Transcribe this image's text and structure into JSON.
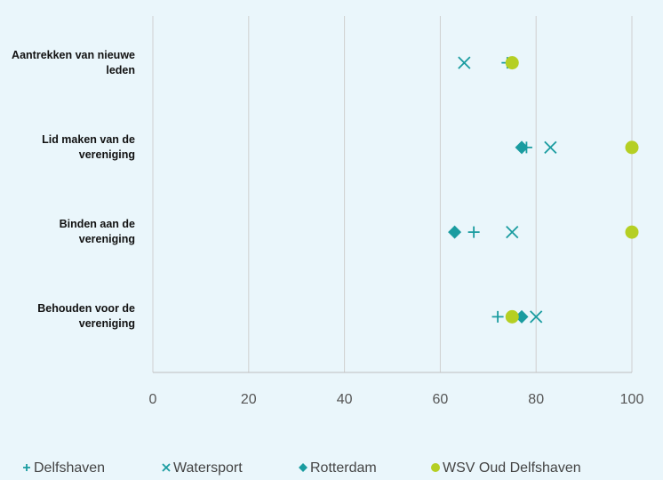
{
  "chart_data": {
    "type": "dot",
    "categories": [
      "Aantrekken van nieuwe leden",
      "Lid maken van de vereniging",
      "Binden aan de vereniging",
      "Behouden voor de vereniging"
    ],
    "series": [
      {
        "name": "Delfshaven",
        "color": "#1a9ca0",
        "marker": "plus",
        "values": [
          74,
          78,
          67,
          72
        ]
      },
      {
        "name": "Watersport",
        "color": "#1a9ca0",
        "marker": "x",
        "values": [
          65,
          83,
          75,
          80
        ]
      },
      {
        "name": "Rotterdam",
        "color": "#1a9ca0",
        "marker": "diamond",
        "values": [
          75,
          77,
          63,
          77
        ]
      },
      {
        "name": "WSV Oud Delfshaven",
        "color": "#b5cf23",
        "marker": "circle",
        "values": [
          75,
          100,
          100,
          75
        ]
      }
    ],
    "xlim": [
      0,
      100
    ],
    "xticks": [
      0,
      20,
      40,
      60,
      80,
      100
    ],
    "grid": true,
    "legend": "bottom"
  }
}
